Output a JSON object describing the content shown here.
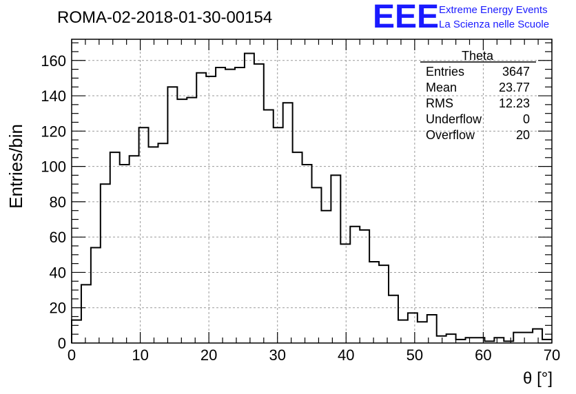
{
  "chart_data": {
    "type": "bar",
    "title": "ROMA-02-2018-01-30-00154",
    "xlabel": "θ [°]",
    "ylabel": "Entries/bin",
    "xlim": [
      0,
      70
    ],
    "ylim": [
      0,
      172
    ],
    "xticks": [
      0,
      10,
      20,
      30,
      40,
      50,
      60,
      70
    ],
    "yticks": [
      0,
      20,
      40,
      60,
      80,
      100,
      120,
      140,
      160
    ],
    "grid": true,
    "bin_width": 1.4,
    "series": [
      {
        "values": [
          13,
          33,
          54,
          90,
          108,
          101,
          106,
          122,
          111,
          113,
          145,
          138,
          139,
          153,
          151,
          156,
          155,
          156,
          164,
          158,
          132,
          122,
          136,
          108,
          101,
          88,
          75,
          95,
          56,
          66,
          64,
          46,
          44,
          27,
          13,
          17,
          12,
          16,
          4,
          5,
          2,
          3,
          3,
          1,
          3,
          1,
          6,
          6,
          8,
          2
        ]
      }
    ],
    "stats_box": {
      "title": "Theta",
      "rows": [
        {
          "label": "Entries",
          "value": "3647"
        },
        {
          "label": "Mean",
          "value": "23.77"
        },
        {
          "label": "RMS",
          "value": "12.23"
        },
        {
          "label": "Underflow",
          "value": "0"
        },
        {
          "label": "Overflow",
          "value": "20"
        }
      ]
    }
  },
  "branding": {
    "logo_text": "EEE",
    "line1": "Extreme Energy Events",
    "line2": "La Scienza nelle Scuole",
    "color": "#1a1aff"
  }
}
